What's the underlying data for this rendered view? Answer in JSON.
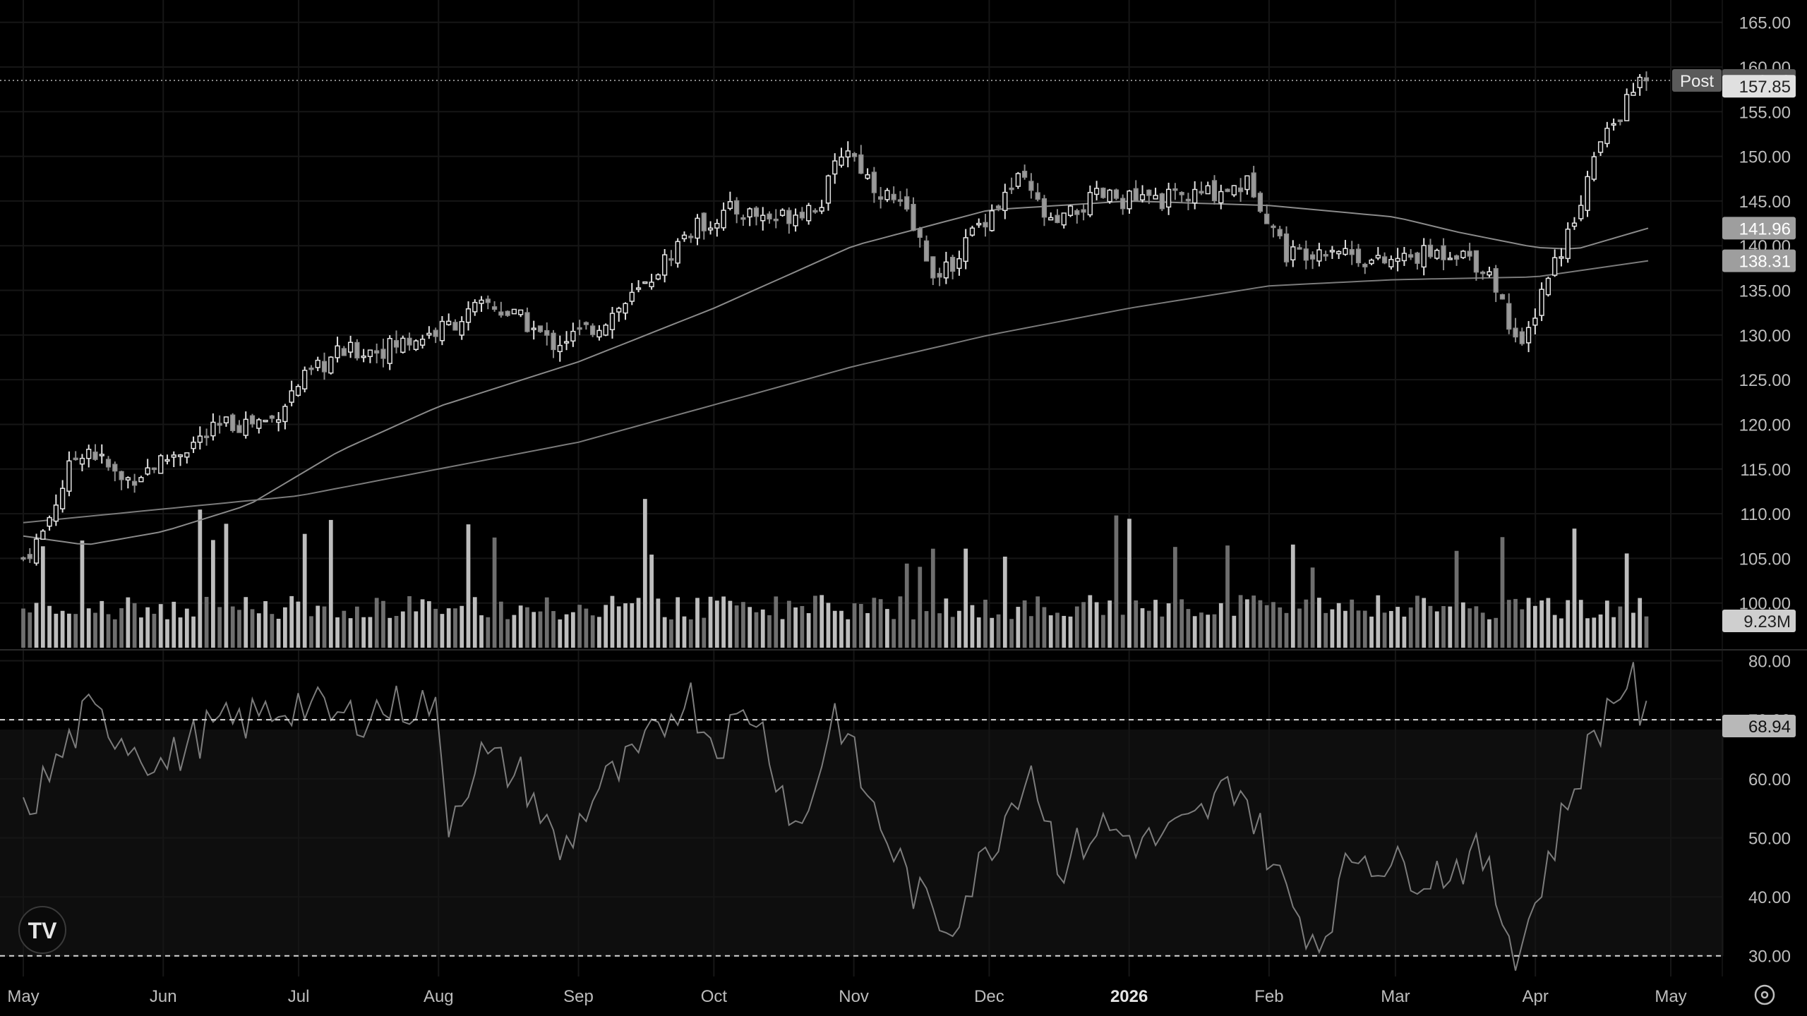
{
  "chart_data": {
    "type": "candlestick",
    "price_axis": {
      "range": [
        95,
        167.5
      ],
      "ticks": [
        "165.00",
        "160.00",
        "155.00",
        "150.00",
        "145.00",
        "140.00",
        "135.00",
        "130.00",
        "125.00",
        "120.00",
        "115.00",
        "110.00",
        "105.00",
        "100.00"
      ]
    },
    "time_axis": {
      "labels": [
        "May",
        "Jun",
        "Jul",
        "Aug",
        "Sep",
        "Oct",
        "Nov",
        "Dec",
        "2026",
        "Feb",
        "Mar",
        "Apr",
        "May"
      ],
      "bold_label": "2026"
    },
    "ohlc_series": [
      {
        "t": "2025-05-01",
        "price": 105
      },
      {
        "t": "2025-05-05",
        "price": 107.5
      },
      {
        "t": "2025-05-12",
        "price": 116
      },
      {
        "t": "2025-05-15",
        "price": 117.6
      },
      {
        "t": "2025-05-23",
        "price": 113.5
      },
      {
        "t": "2025-06-01",
        "price": 116
      },
      {
        "t": "2025-06-15",
        "price": 120
      },
      {
        "t": "2025-06-25",
        "price": 120.5
      },
      {
        "t": "2025-07-01",
        "price": 124.5
      },
      {
        "t": "2025-07-10",
        "price": 128
      },
      {
        "t": "2025-07-20",
        "price": 128.5
      },
      {
        "t": "2025-08-01",
        "price": 130.5
      },
      {
        "t": "2025-08-12",
        "price": 133.5
      },
      {
        "t": "2025-08-20",
        "price": 131.5
      },
      {
        "t": "2025-08-26",
        "price": 129
      },
      {
        "t": "2025-09-05",
        "price": 131
      },
      {
        "t": "2025-09-15",
        "price": 135
      },
      {
        "t": "2025-09-25",
        "price": 141.5
      },
      {
        "t": "2025-10-05",
        "price": 144
      },
      {
        "t": "2025-10-15",
        "price": 143
      },
      {
        "t": "2025-10-25",
        "price": 145
      },
      {
        "t": "2025-10-30",
        "price": 151.5
      },
      {
        "t": "2025-11-05",
        "price": 147
      },
      {
        "t": "2025-11-12",
        "price": 144
      },
      {
        "t": "2025-11-20",
        "price": 136
      },
      {
        "t": "2025-11-28",
        "price": 142
      },
      {
        "t": "2025-12-08",
        "price": 147.5
      },
      {
        "t": "2025-12-15",
        "price": 142
      },
      {
        "t": "2025-12-25",
        "price": 145.5
      },
      {
        "t": "2026-01-05",
        "price": 145
      },
      {
        "t": "2026-01-15",
        "price": 145.5
      },
      {
        "t": "2026-01-28",
        "price": 147
      },
      {
        "t": "2026-02-05",
        "price": 139
      },
      {
        "t": "2026-02-15",
        "price": 140
      },
      {
        "t": "2026-02-25",
        "price": 138
      },
      {
        "t": "2026-03-08",
        "price": 139
      },
      {
        "t": "2026-03-15",
        "price": 139.5
      },
      {
        "t": "2026-03-22",
        "price": 137
      },
      {
        "t": "2026-03-29",
        "price": 128
      },
      {
        "t": "2026-04-03",
        "price": 136
      },
      {
        "t": "2026-04-08",
        "price": 141
      },
      {
        "t": "2026-04-15",
        "price": 151
      },
      {
        "t": "2026-04-20",
        "price": 155
      },
      {
        "t": "2026-04-24",
        "price": 158.5
      },
      {
        "t": "2026-04-26",
        "price": 157.85
      }
    ],
    "moving_averages": [
      {
        "points": [
          [
            "2025-05-01",
            107.5
          ],
          [
            "2025-05-15",
            106.5
          ],
          [
            "2025-06-01",
            108
          ],
          [
            "2025-06-20",
            111
          ],
          [
            "2025-07-10",
            117
          ],
          [
            "2025-08-01",
            122
          ],
          [
            "2025-09-01",
            127
          ],
          [
            "2025-10-01",
            133
          ],
          [
            "2025-11-01",
            140
          ],
          [
            "2025-12-01",
            144
          ],
          [
            "2026-01-01",
            145
          ],
          [
            "2026-02-01",
            144.5
          ],
          [
            "2026-03-01",
            143.2
          ],
          [
            "2026-03-15",
            141.5
          ],
          [
            "2026-04-01",
            139.8
          ],
          [
            "2026-04-10",
            139.6
          ],
          [
            "2026-04-26",
            141.96
          ]
        ]
      },
      {
        "points": [
          [
            "2025-05-01",
            109
          ],
          [
            "2025-07-01",
            112
          ],
          [
            "2025-09-01",
            118
          ],
          [
            "2025-11-01",
            126.5
          ],
          [
            "2025-12-01",
            130
          ],
          [
            "2026-01-01",
            133
          ],
          [
            "2026-02-01",
            135.5
          ],
          [
            "2026-03-01",
            136.2
          ],
          [
            "2026-04-01",
            136.5
          ],
          [
            "2026-04-26",
            138.31
          ]
        ]
      }
    ],
    "price_labels": {
      "post_tag": "Post",
      "post": "158.50",
      "last": "157.85",
      "ma1": "141.96",
      "ma2": "138.31"
    },
    "volume": {
      "last_label": "9.23M"
    },
    "oscillator": {
      "range": [
        26.5,
        81.5
      ],
      "ticks": [
        "80.00",
        "70.00",
        "60.00",
        "50.00",
        "40.00",
        "30.00"
      ],
      "bands": [
        70,
        30
      ],
      "last": "68.94",
      "series": [
        [
          "2025-05-01",
          54
        ],
        [
          "2025-05-08",
          62
        ],
        [
          "2025-05-15",
          71
        ],
        [
          "2025-05-22",
          68
        ],
        [
          "2025-06-01",
          62
        ],
        [
          "2025-06-10",
          68
        ],
        [
          "2025-06-20",
          70
        ],
        [
          "2025-07-01",
          73
        ],
        [
          "2025-07-10",
          70
        ],
        [
          "2025-07-20",
          72
        ],
        [
          "2025-07-31",
          73
        ],
        [
          "2025-08-03",
          53
        ],
        [
          "2025-08-10",
          64
        ],
        [
          "2025-08-20",
          60
        ],
        [
          "2025-08-28",
          47
        ],
        [
          "2025-09-05",
          58
        ],
        [
          "2025-09-15",
          64
        ],
        [
          "2025-09-25",
          75
        ],
        [
          "2025-10-01",
          66
        ],
        [
          "2025-10-10",
          72
        ],
        [
          "2025-10-20",
          50
        ],
        [
          "2025-10-28",
          72
        ],
        [
          "2025-11-05",
          55
        ],
        [
          "2025-11-15",
          40
        ],
        [
          "2025-11-22",
          35
        ],
        [
          "2025-12-01",
          48
        ],
        [
          "2025-12-10",
          63
        ],
        [
          "2025-12-17",
          45
        ],
        [
          "2025-12-25",
          52
        ],
        [
          "2026-01-05",
          49
        ],
        [
          "2026-01-15",
          52
        ],
        [
          "2026-01-25",
          60
        ],
        [
          "2026-02-05",
          40
        ],
        [
          "2026-02-12",
          32
        ],
        [
          "2026-02-20",
          48
        ],
        [
          "2026-03-01",
          45
        ],
        [
          "2026-03-10",
          44
        ],
        [
          "2026-03-20",
          47
        ],
        [
          "2026-03-28",
          30
        ],
        [
          "2026-04-03",
          44
        ],
        [
          "2026-04-10",
          60
        ],
        [
          "2026-04-17",
          72
        ],
        [
          "2026-04-22",
          78
        ],
        [
          "2026-04-24",
          72
        ],
        [
          "2026-04-26",
          68.94
        ]
      ]
    },
    "grid": true
  }
}
